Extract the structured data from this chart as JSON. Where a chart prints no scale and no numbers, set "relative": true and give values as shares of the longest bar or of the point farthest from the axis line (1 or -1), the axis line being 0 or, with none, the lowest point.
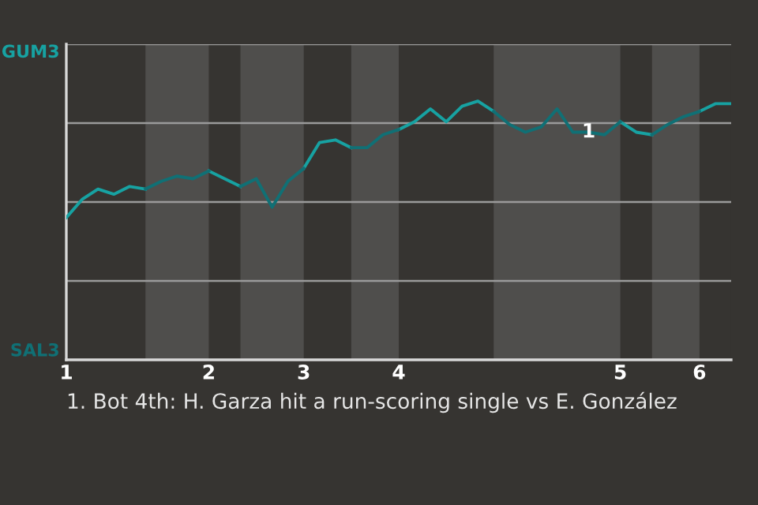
{
  "chart_data": {
    "type": "line",
    "relative": true,
    "categories": [
      "1",
      null,
      null,
      null,
      null,
      null,
      null,
      null,
      null,
      "2",
      null,
      null,
      null,
      null,
      null,
      "3",
      null,
      null,
      null,
      null,
      null,
      "4",
      null,
      null,
      null,
      null,
      null,
      null,
      null,
      null,
      null,
      null,
      null,
      null,
      null,
      "5",
      null,
      null,
      null,
      null,
      "6",
      null,
      null
    ],
    "series": [
      {
        "color": "#17a2a2",
        "values": [
          0.55,
          0.62,
          0.66,
          0.64,
          0.67,
          0.66,
          null,
          null,
          null,
          0.73,
          0.7,
          0.67,
          null,
          null,
          null,
          0.74,
          0.84,
          0.85,
          0.82,
          null,
          null,
          0.89,
          0.92,
          0.97,
          0.92,
          0.98,
          1,
          0.96,
          null,
          null,
          null,
          null,
          null,
          null,
          null,
          0.92,
          0.88,
          0.87,
          null,
          null,
          0.96,
          0.99,
          0.99
        ]
      },
      {
        "color": "#107075",
        "values": [
          null,
          null,
          null,
          null,
          null,
          0.66,
          0.69,
          0.71,
          0.7,
          0.73,
          null,
          0.67,
          0.7,
          0.59,
          0.69,
          0.74,
          null,
          null,
          0.82,
          0.82,
          0.87,
          0.89,
          null,
          null,
          null,
          null,
          null,
          0.96,
          0.91,
          0.88,
          0.9,
          0.97,
          0.88,
          0.88,
          0.87,
          0.92,
          null,
          0.87,
          0.91,
          0.94,
          0.96,
          null,
          null
        ]
      }
    ],
    "grid": "y",
    "marker": "none",
    "line_style": "solid",
    "legend": false,
    "annotations": [
      "GUM3",
      "SAL3",
      "1",
      "1. Bot 4th: H. Garza hit a run-scoring single vs E. González"
    ]
  }
}
